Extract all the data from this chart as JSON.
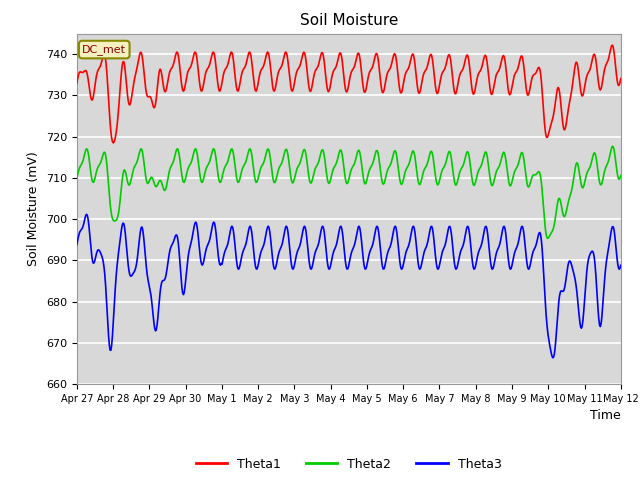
{
  "title": "Soil Moisture",
  "xlabel": "Time",
  "ylabel": "Soil Moisture (mV)",
  "ylim": [
    660,
    745
  ],
  "annotation": "DC_met",
  "legend": [
    "Theta1",
    "Theta2",
    "Theta3"
  ],
  "colors": [
    "red",
    "#00cc00",
    "blue"
  ],
  "background_color": "#d8d8d8",
  "grid_color": "#bbbbbb",
  "x_tick_labels": [
    "Apr 27",
    "Apr 28",
    "Apr 29",
    "Apr 30",
    "May 1",
    "May 2",
    "May 3",
    "May 4",
    "May 5",
    "May 6",
    "May 7",
    "May 8",
    "May 9",
    "May 10",
    "May 11",
    "May 12"
  ],
  "num_points": 720
}
